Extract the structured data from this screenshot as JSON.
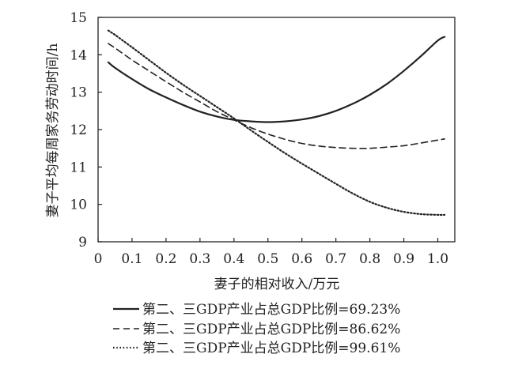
{
  "chart_data": {
    "type": "line",
    "title": "",
    "xlabel": "妻子的相对收入/万元",
    "ylabel": "妻子平均每周家务劳动时间/h",
    "xlim": [
      0,
      1.05
    ],
    "ylim": [
      9,
      15
    ],
    "xticks": [
      0,
      0.1,
      0.2,
      0.3,
      0.4,
      0.5,
      0.6,
      0.7,
      0.8,
      0.9,
      1.0
    ],
    "xtick_labels": [
      "0",
      "0.1",
      "0.2",
      "0.3",
      "0.4",
      "0.5",
      "0.6",
      "0.7",
      "0.8",
      "0.9",
      "1.0"
    ],
    "yticks": [
      9,
      10,
      11,
      12,
      13,
      14,
      15
    ],
    "ytick_labels": [
      "9",
      "10",
      "11",
      "12",
      "13",
      "14",
      "15"
    ],
    "grid": false,
    "legend_position": "bottom",
    "x": [
      0.03,
      0.05,
      0.1,
      0.15,
      0.2,
      0.25,
      0.3,
      0.35,
      0.4,
      0.45,
      0.5,
      0.55,
      0.6,
      0.65,
      0.7,
      0.75,
      0.8,
      0.85,
      0.9,
      0.95,
      1.0,
      1.02
    ],
    "series": [
      {
        "name": "第二、三GDP产业占总GDP比例=69.23%",
        "style": "solid",
        "values": [
          13.8,
          13.65,
          13.35,
          13.08,
          12.86,
          12.66,
          12.48,
          12.35,
          12.26,
          12.22,
          12.2,
          12.22,
          12.27,
          12.36,
          12.5,
          12.69,
          12.93,
          13.22,
          13.57,
          13.96,
          14.38,
          14.48
        ]
      },
      {
        "name": "第二、三GDP产业占总GDP比例=86.62%",
        "style": "dashed",
        "values": [
          14.3,
          14.18,
          13.86,
          13.57,
          13.28,
          13.0,
          12.74,
          12.48,
          12.26,
          12.05,
          11.88,
          11.74,
          11.63,
          11.56,
          11.52,
          11.5,
          11.5,
          11.53,
          11.57,
          11.64,
          11.72,
          11.75
        ]
      },
      {
        "name": "第二、三GDP产业占总GDP比例=99.61%",
        "style": "dotted",
        "values": [
          14.65,
          14.53,
          14.2,
          13.86,
          13.52,
          13.2,
          12.9,
          12.6,
          12.3,
          11.98,
          11.67,
          11.37,
          11.09,
          10.82,
          10.55,
          10.29,
          10.07,
          9.91,
          9.8,
          9.74,
          9.72,
          9.72
        ]
      }
    ]
  }
}
